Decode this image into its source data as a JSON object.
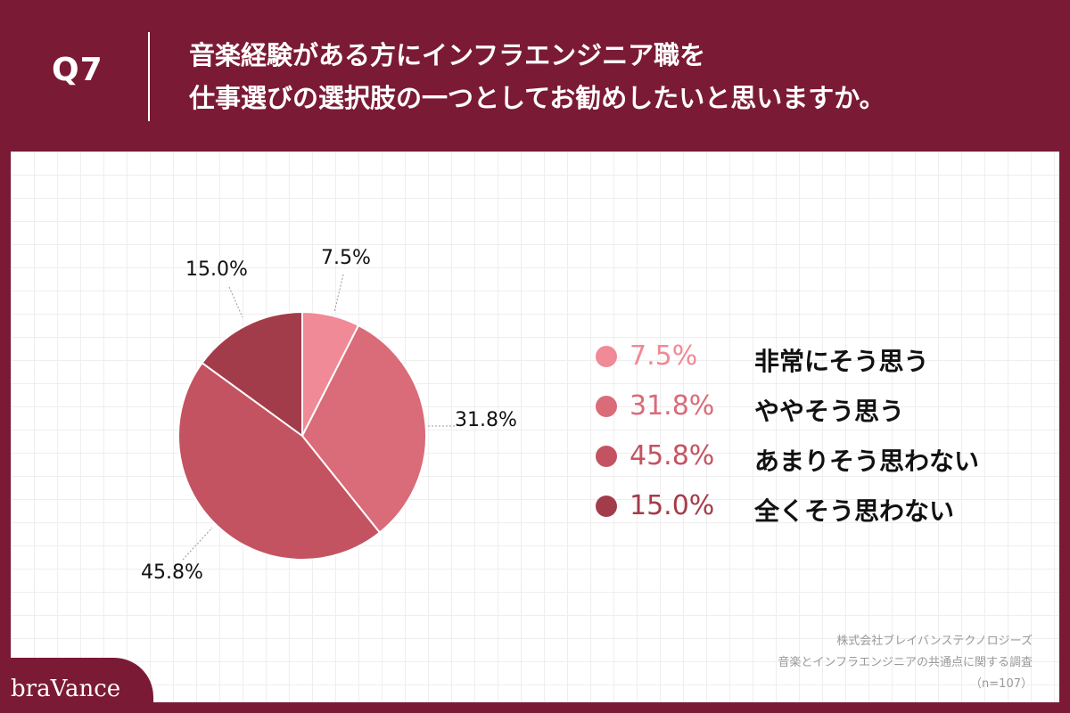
{
  "header": {
    "question_number": "Q7",
    "title_line1": "音楽経験がある方にインフラエンジニア職を",
    "title_line2": "仕事選びの選択肢の一つとしてお勧めしたいと思いますか。"
  },
  "chart_data": {
    "type": "pie",
    "title": "",
    "categories": [
      "非常にそう思う",
      "ややそう思う",
      "あまりそう思わない",
      "全くそう思わない"
    ],
    "values": [
      7.5,
      31.8,
      45.8,
      15.0
    ],
    "value_labels": [
      "7.5%",
      "31.8%",
      "45.8%",
      "15.0%"
    ],
    "colors": [
      "#ef8a96",
      "#da6b79",
      "#c45361",
      "#a33c4a"
    ],
    "legend_position": "right",
    "start_angle_deg": 0,
    "direction": "clockwise"
  },
  "legend": {
    "items": [
      {
        "pct": "7.5%",
        "label": "非常にそう思う",
        "color": "#ef8a96"
      },
      {
        "pct": "31.8%",
        "label": "ややそう思う",
        "color": "#da6b79"
      },
      {
        "pct": "45.8%",
        "label": "あまりそう思わない",
        "color": "#c45361"
      },
      {
        "pct": "15.0%",
        "label": "全くそう思わない",
        "color": "#a33c4a"
      }
    ]
  },
  "source": {
    "line1": "株式会社ブレイバンステクノロジーズ",
    "line2": "音楽とインフラエンジニアの共通点に関する調査",
    "line3": "（n=107）"
  },
  "brand": {
    "logo_text": "braVance"
  }
}
